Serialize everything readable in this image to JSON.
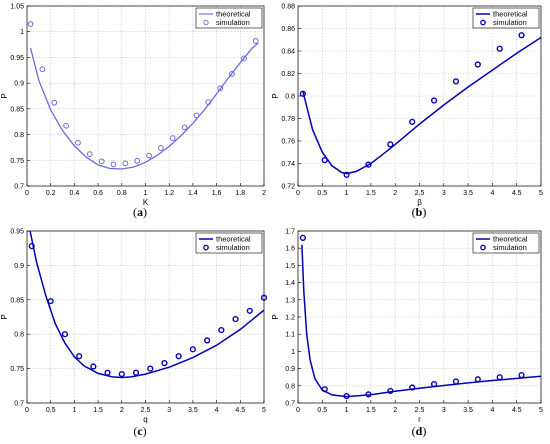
{
  "chart_data": [
    {
      "type": "line",
      "panel_label": "(a)",
      "xlabel": "K",
      "ylabel": "P",
      "xlim": [
        0,
        2
      ],
      "ylim": [
        0.7,
        1.05
      ],
      "xticks": [
        "0",
        "0.2",
        "0.4",
        "0.6",
        "0.8",
        "1",
        "1.2",
        "1.4",
        "1.6",
        "1.8",
        "2"
      ],
      "yticks": [
        "0.7",
        "0.75",
        "0.8",
        "0.85",
        "0.9",
        "0.95",
        "1",
        "1.05"
      ],
      "xtick_values": [
        0,
        0.2,
        0.4,
        0.6,
        0.8,
        1,
        1.2,
        1.4,
        1.6,
        1.8,
        2
      ],
      "ytick_values": [
        0.7,
        0.75,
        0.8,
        0.85,
        0.9,
        0.95,
        1,
        1.05
      ],
      "grid": true,
      "legend": "top-right",
      "legend_style": "light",
      "series": [
        {
          "name": "theoretical",
          "style": "line",
          "x": [
            0.03,
            0.1,
            0.2,
            0.3,
            0.4,
            0.5,
            0.6,
            0.7,
            0.8,
            0.9,
            1.0,
            1.1,
            1.2,
            1.3,
            1.4,
            1.5,
            1.6,
            1.7,
            1.8,
            1.9,
            1.95
          ],
          "y": [
            0.968,
            0.905,
            0.848,
            0.808,
            0.778,
            0.756,
            0.741,
            0.734,
            0.733,
            0.737,
            0.746,
            0.76,
            0.777,
            0.798,
            0.822,
            0.849,
            0.879,
            0.91,
            0.94,
            0.968,
            0.978
          ]
        },
        {
          "name": "simulation",
          "style": "circle",
          "x": [
            0.03,
            0.13,
            0.23,
            0.33,
            0.43,
            0.53,
            0.63,
            0.73,
            0.83,
            0.93,
            1.03,
            1.13,
            1.23,
            1.33,
            1.43,
            1.53,
            1.63,
            1.73,
            1.83,
            1.93
          ],
          "y": [
            1.015,
            0.927,
            0.862,
            0.817,
            0.784,
            0.762,
            0.748,
            0.742,
            0.744,
            0.749,
            0.759,
            0.774,
            0.793,
            0.814,
            0.837,
            0.863,
            0.89,
            0.918,
            0.948,
            0.982
          ]
        }
      ]
    },
    {
      "type": "line",
      "panel_label": "(b)",
      "xlabel": "β",
      "ylabel": "P",
      "xlim": [
        0,
        5
      ],
      "ylim": [
        0.72,
        0.88
      ],
      "xticks": [
        "0",
        "0.5",
        "1",
        "1.5",
        "2",
        "2.5",
        "3",
        "3.5",
        "4",
        "4.5",
        "5"
      ],
      "yticks": [
        "0.72",
        "0.74",
        "0.76",
        "0.78",
        "0.8",
        "0.82",
        "0.84",
        "0.86",
        "0.88"
      ],
      "xtick_values": [
        0,
        0.5,
        1,
        1.5,
        2,
        2.5,
        3,
        3.5,
        4,
        4.5,
        5
      ],
      "ytick_values": [
        0.72,
        0.74,
        0.76,
        0.78,
        0.8,
        0.82,
        0.84,
        0.86,
        0.88
      ],
      "grid": true,
      "legend": "top-right",
      "legend_style": "bold",
      "series": [
        {
          "name": "theoretical",
          "style": "line",
          "x": [
            0.1,
            0.3,
            0.5,
            0.7,
            0.9,
            1.0,
            1.2,
            1.5,
            1.8,
            2.0,
            2.5,
            3.0,
            3.5,
            4.0,
            4.5,
            5.0
          ],
          "y": [
            0.804,
            0.77,
            0.75,
            0.738,
            0.732,
            0.731,
            0.733,
            0.74,
            0.75,
            0.757,
            0.775,
            0.792,
            0.808,
            0.823,
            0.838,
            0.852
          ]
        },
        {
          "name": "simulation",
          "style": "circle",
          "x": [
            0.1,
            0.55,
            1.0,
            1.45,
            1.9,
            2.35,
            2.8,
            3.25,
            3.7,
            4.15,
            4.6
          ],
          "y": [
            0.802,
            0.743,
            0.73,
            0.739,
            0.757,
            0.777,
            0.796,
            0.813,
            0.828,
            0.842,
            0.854
          ]
        }
      ]
    },
    {
      "type": "line",
      "panel_label": "(c)",
      "xlabel": "q",
      "ylabel": "P",
      "xlim": [
        0,
        5
      ],
      "ylim": [
        0.7,
        0.95
      ],
      "xticks": [
        "0",
        "0.5",
        "1",
        "1.5",
        "2",
        "2.5",
        "3",
        "3.5",
        "4",
        "4.5",
        "5"
      ],
      "yticks": [
        "0.7",
        "0.75",
        "0.8",
        "0.85",
        "0.9",
        "0.95"
      ],
      "xtick_values": [
        0,
        0.5,
        1,
        1.5,
        2,
        2.5,
        3,
        3.5,
        4,
        4.5,
        5
      ],
      "ytick_values": [
        0.7,
        0.75,
        0.8,
        0.85,
        0.9,
        0.95
      ],
      "grid": true,
      "legend": "top-right",
      "legend_style": "bold",
      "series": [
        {
          "name": "theoretical",
          "style": "line",
          "x": [
            0.05,
            0.2,
            0.4,
            0.6,
            0.8,
            1.0,
            1.2,
            1.5,
            1.8,
            2.0,
            2.2,
            2.5,
            3.0,
            3.5,
            4.0,
            4.5,
            5.0
          ],
          "y": [
            0.955,
            0.905,
            0.855,
            0.815,
            0.787,
            0.767,
            0.754,
            0.743,
            0.738,
            0.737,
            0.738,
            0.742,
            0.752,
            0.766,
            0.784,
            0.807,
            0.835
          ]
        },
        {
          "name": "simulation",
          "style": "circle",
          "x": [
            0.1,
            0.5,
            0.8,
            1.1,
            1.4,
            1.7,
            2.0,
            2.3,
            2.6,
            2.9,
            3.2,
            3.5,
            3.8,
            4.1,
            4.4,
            4.7,
            5.0
          ],
          "y": [
            0.928,
            0.848,
            0.8,
            0.768,
            0.753,
            0.744,
            0.742,
            0.744,
            0.75,
            0.758,
            0.768,
            0.778,
            0.791,
            0.806,
            0.822,
            0.834,
            0.853
          ]
        }
      ]
    },
    {
      "type": "line",
      "panel_label": "(d)",
      "xlabel": "r",
      "ylabel": "P",
      "xlim": [
        0,
        5
      ],
      "ylim": [
        0.7,
        1.7
      ],
      "xticks": [
        "0",
        "0.5",
        "1",
        "1.5",
        "2",
        "2.5",
        "3",
        "3.5",
        "4",
        "4.5",
        "5"
      ],
      "yticks": [
        "0.7",
        "0.8",
        "0.9",
        "1",
        "1.1",
        "1.2",
        "1.3",
        "1.4",
        "1.5",
        "1.6",
        "1.7"
      ],
      "xtick_values": [
        0,
        0.5,
        1,
        1.5,
        2,
        2.5,
        3,
        3.5,
        4,
        4.5,
        5
      ],
      "ytick_values": [
        0.7,
        0.8,
        0.9,
        1,
        1.1,
        1.2,
        1.3,
        1.4,
        1.5,
        1.6,
        1.7
      ],
      "grid": true,
      "legend": "top-right",
      "legend_style": "bold",
      "series": [
        {
          "name": "theoretical",
          "style": "line",
          "x": [
            0.08,
            0.12,
            0.18,
            0.25,
            0.35,
            0.5,
            0.7,
            1.0,
            1.5,
            2.0,
            2.5,
            3.0,
            3.5,
            4.0,
            4.5,
            5.0
          ],
          "y": [
            1.62,
            1.35,
            1.1,
            0.95,
            0.84,
            0.775,
            0.747,
            0.737,
            0.748,
            0.768,
            0.786,
            0.802,
            0.817,
            0.831,
            0.843,
            0.855
          ]
        },
        {
          "name": "simulation",
          "style": "circle",
          "x": [
            0.1,
            0.55,
            1.0,
            1.45,
            1.9,
            2.35,
            2.8,
            3.25,
            3.7,
            4.15,
            4.6
          ],
          "y": [
            1.66,
            0.78,
            0.74,
            0.75,
            0.77,
            0.79,
            0.81,
            0.825,
            0.838,
            0.85,
            0.862
          ]
        }
      ]
    }
  ],
  "colors": {
    "series": "#0000b4",
    "light_series": "#6a6adb",
    "grid": "#c8c8c8",
    "axis": "#000000"
  },
  "legend_labels": {
    "theoretical": "theoretical",
    "simulation": "simulation"
  }
}
